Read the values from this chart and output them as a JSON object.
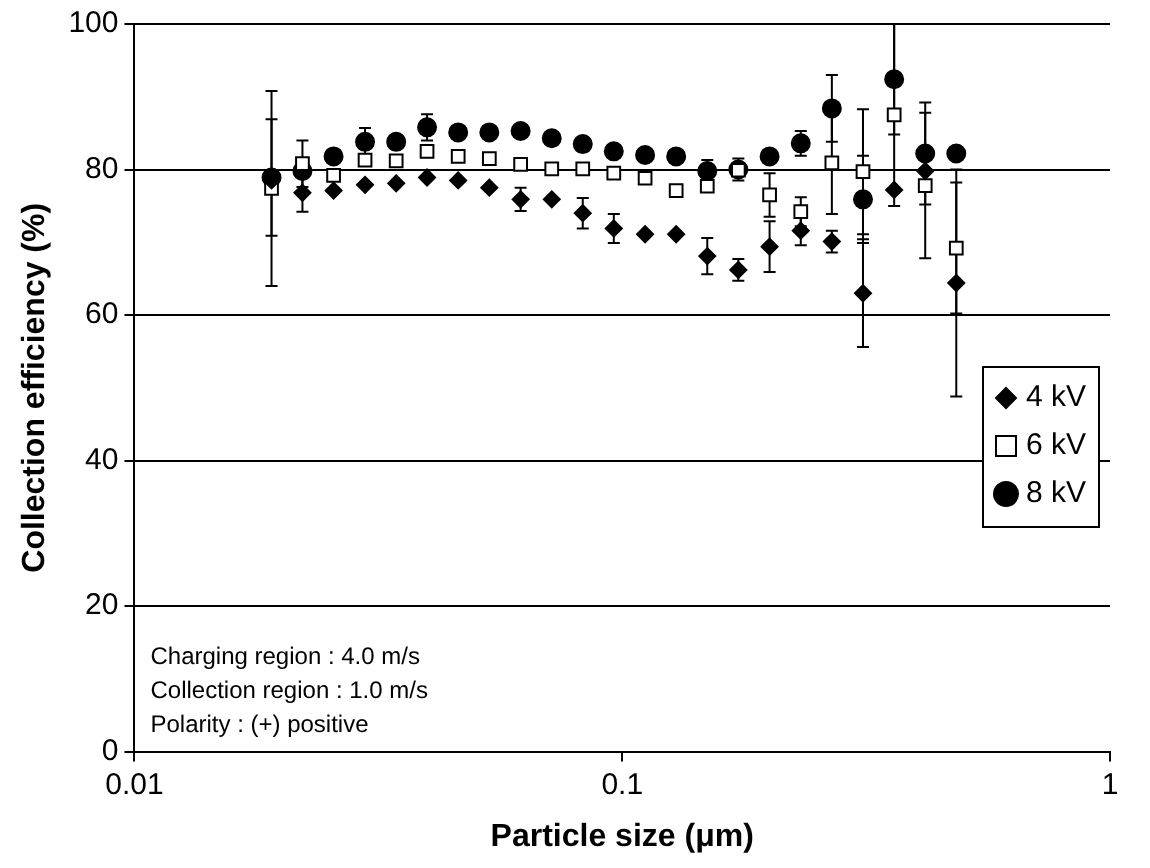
{
  "chart_data": {
    "type": "scatter",
    "xlabel": "Particle size (μm)",
    "ylabel": "Collection efficiency (%)",
    "log": "x",
    "xlim": [
      0.01,
      1
    ],
    "xticks": [
      0.01,
      0.1,
      1
    ],
    "ylim": [
      0,
      100
    ],
    "yticks": [
      0,
      20,
      40,
      60,
      80,
      100
    ],
    "grid": "y",
    "legend": "right",
    "x": [
      0.0191,
      0.0221,
      0.0256,
      0.0297,
      0.0344,
      0.0398,
      0.0461,
      0.0534,
      0.0619,
      0.0717,
      0.083,
      0.0961,
      0.1114,
      0.129,
      0.1494,
      0.173,
      0.2005,
      0.2323,
      0.269,
      0.3116,
      0.361,
      0.418,
      0.484
    ],
    "series": [
      {
        "name": "4 kV",
        "color": "#000000",
        "marker": "diamond",
        "values": [
          78.5,
          76.8,
          77.1,
          77.9,
          78.1,
          78.9,
          78.5,
          77.5,
          75.9,
          75.9,
          74.0,
          71.9,
          71.1,
          71.1,
          68.1,
          66.2,
          69.4,
          71.6,
          70.1,
          63.0,
          77.2,
          79.8,
          64.4
        ],
        "errors": [
          null,
          2.6,
          null,
          null,
          null,
          null,
          null,
          null,
          1.6,
          null,
          2.1,
          2.0,
          null,
          null,
          2.5,
          1.5,
          3.5,
          2.0,
          1.5,
          7.4,
          null,
          null,
          15.6
        ]
      },
      {
        "name": "6 kV",
        "color": "#000000",
        "marker": "square",
        "values": [
          77.4,
          80.8,
          79.2,
          81.3,
          81.2,
          82.5,
          81.8,
          81.5,
          80.7,
          80.1,
          80.1,
          79.5,
          78.8,
          77.1,
          77.7,
          79.9,
          76.5,
          74.2,
          80.9,
          79.7,
          87.5,
          77.8,
          69.2
        ],
        "errors": [
          13.4,
          3.2,
          null,
          null,
          null,
          null,
          null,
          null,
          null,
          null,
          null,
          null,
          null,
          null,
          null,
          null,
          3.0,
          2.0,
          7.0,
          8.6,
          12.5,
          10.0,
          9.0
        ]
      },
      {
        "name": "8 kV",
        "color": "#000000",
        "marker": "circle",
        "values": [
          78.9,
          79.8,
          81.8,
          83.8,
          83.8,
          85.8,
          85.1,
          85.1,
          85.3,
          84.3,
          83.5,
          82.5,
          82.0,
          81.8,
          79.8,
          80.0,
          81.8,
          83.6,
          88.4,
          75.9,
          92.4,
          82.2,
          82.2
        ],
        "errors": [
          8.0,
          null,
          null,
          1.9,
          null,
          1.8,
          null,
          null,
          null,
          null,
          null,
          null,
          null,
          null,
          1.5,
          1.5,
          null,
          1.7,
          4.6,
          6.0,
          7.6,
          7.0,
          null
        ]
      }
    ],
    "annotations": [
      "Charging region : 4.0 m/s",
      "Collection region : 1.0 m/s",
      "Polarity : (+) positive"
    ]
  }
}
